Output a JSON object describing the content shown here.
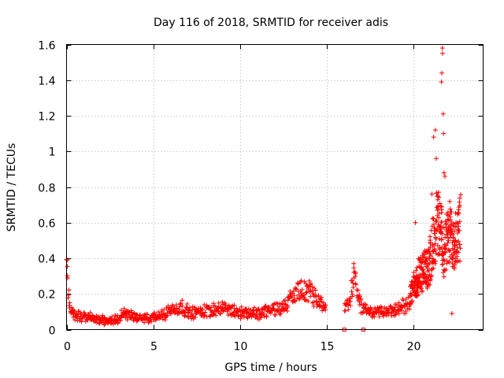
{
  "chart_data": {
    "type": "scatter",
    "title": "Day 116 of 2018, SRMTID for receiver adis",
    "xlabel": "GPS time / hours",
    "ylabel": "SRMTID / TECUs",
    "xlim": [
      0,
      24
    ],
    "ylim": [
      0,
      1.6
    ],
    "grid": true,
    "marker": "+",
    "color": "#ff0000",
    "x_ticks": [
      0,
      5,
      10,
      15,
      20
    ],
    "x_tick_labels": [
      "0",
      "5",
      "10",
      "15",
      "20"
    ],
    "y_ticks": [
      0,
      0.2,
      0.4,
      0.6,
      0.8,
      1.0,
      1.2,
      1.4,
      1.6
    ],
    "y_tick_labels": [
      "0",
      "0.2",
      "0.4",
      "0.6",
      "0.8",
      "1",
      "1.2",
      "1.4",
      "1.6"
    ],
    "series": [
      {
        "name": "SRMTID",
        "envelope_hours": [
          0.0,
          0.05,
          0.15,
          0.3,
          0.6,
          1.0,
          1.5,
          2.0,
          2.5,
          3.0,
          3.3,
          3.7,
          4.2,
          4.8,
          5.2,
          5.6,
          6.0,
          6.4,
          6.7,
          7.0,
          7.5,
          8.0,
          8.5,
          9.0,
          9.5,
          10.0,
          10.5,
          11.0,
          11.5,
          12.0,
          12.5,
          13.0,
          13.5,
          13.8,
          14.1,
          14.4,
          14.7,
          14.95,
          15.5,
          16.0,
          16.3,
          16.6,
          16.9,
          17.2,
          17.6,
          18.0,
          18.5,
          19.0,
          19.4,
          19.7,
          20.0,
          20.3,
          20.6,
          20.9,
          21.1,
          21.3,
          21.5,
          21.7,
          21.9,
          22.1,
          22.3,
          22.5,
          22.7
        ],
        "envelope_srmtid": [
          0.36,
          0.28,
          0.15,
          0.09,
          0.07,
          0.07,
          0.06,
          0.05,
          0.04,
          0.06,
          0.09,
          0.07,
          0.06,
          0.06,
          0.07,
          0.08,
          0.1,
          0.11,
          0.12,
          0.09,
          0.09,
          0.1,
          0.11,
          0.11,
          0.1,
          0.09,
          0.09,
          0.08,
          0.1,
          0.11,
          0.12,
          0.17,
          0.2,
          0.2,
          0.19,
          0.16,
          0.14,
          0.12,
          null,
          0.1,
          0.15,
          0.3,
          0.13,
          0.11,
          0.09,
          0.09,
          0.1,
          0.1,
          0.12,
          0.14,
          0.22,
          0.27,
          0.3,
          0.33,
          0.45,
          0.55,
          0.55,
          0.42,
          0.45,
          0.5,
          0.48,
          0.48,
          0.55
        ],
        "peaks": [
          {
            "x": 0.05,
            "y": 0.39
          },
          {
            "x": 16.55,
            "y": 0.37
          },
          {
            "x": 20.1,
            "y": 0.6
          },
          {
            "x": 21.05,
            "y": 0.76
          },
          {
            "x": 21.15,
            "y": 1.08
          },
          {
            "x": 21.25,
            "y": 1.12
          },
          {
            "x": 21.3,
            "y": 0.96
          },
          {
            "x": 21.6,
            "y": 1.39
          },
          {
            "x": 21.62,
            "y": 1.44
          },
          {
            "x": 21.65,
            "y": 1.58
          },
          {
            "x": 21.66,
            "y": 1.55
          },
          {
            "x": 21.7,
            "y": 1.21
          },
          {
            "x": 21.72,
            "y": 1.1
          },
          {
            "x": 21.75,
            "y": 0.88
          },
          {
            "x": 21.8,
            "y": 0.86
          },
          {
            "x": 22.2,
            "y": 0.09
          }
        ],
        "near_zero_points": [
          {
            "x": 16.0,
            "y": 0.0
          },
          {
            "x": 17.1,
            "y": 0.0
          }
        ]
      }
    ]
  }
}
